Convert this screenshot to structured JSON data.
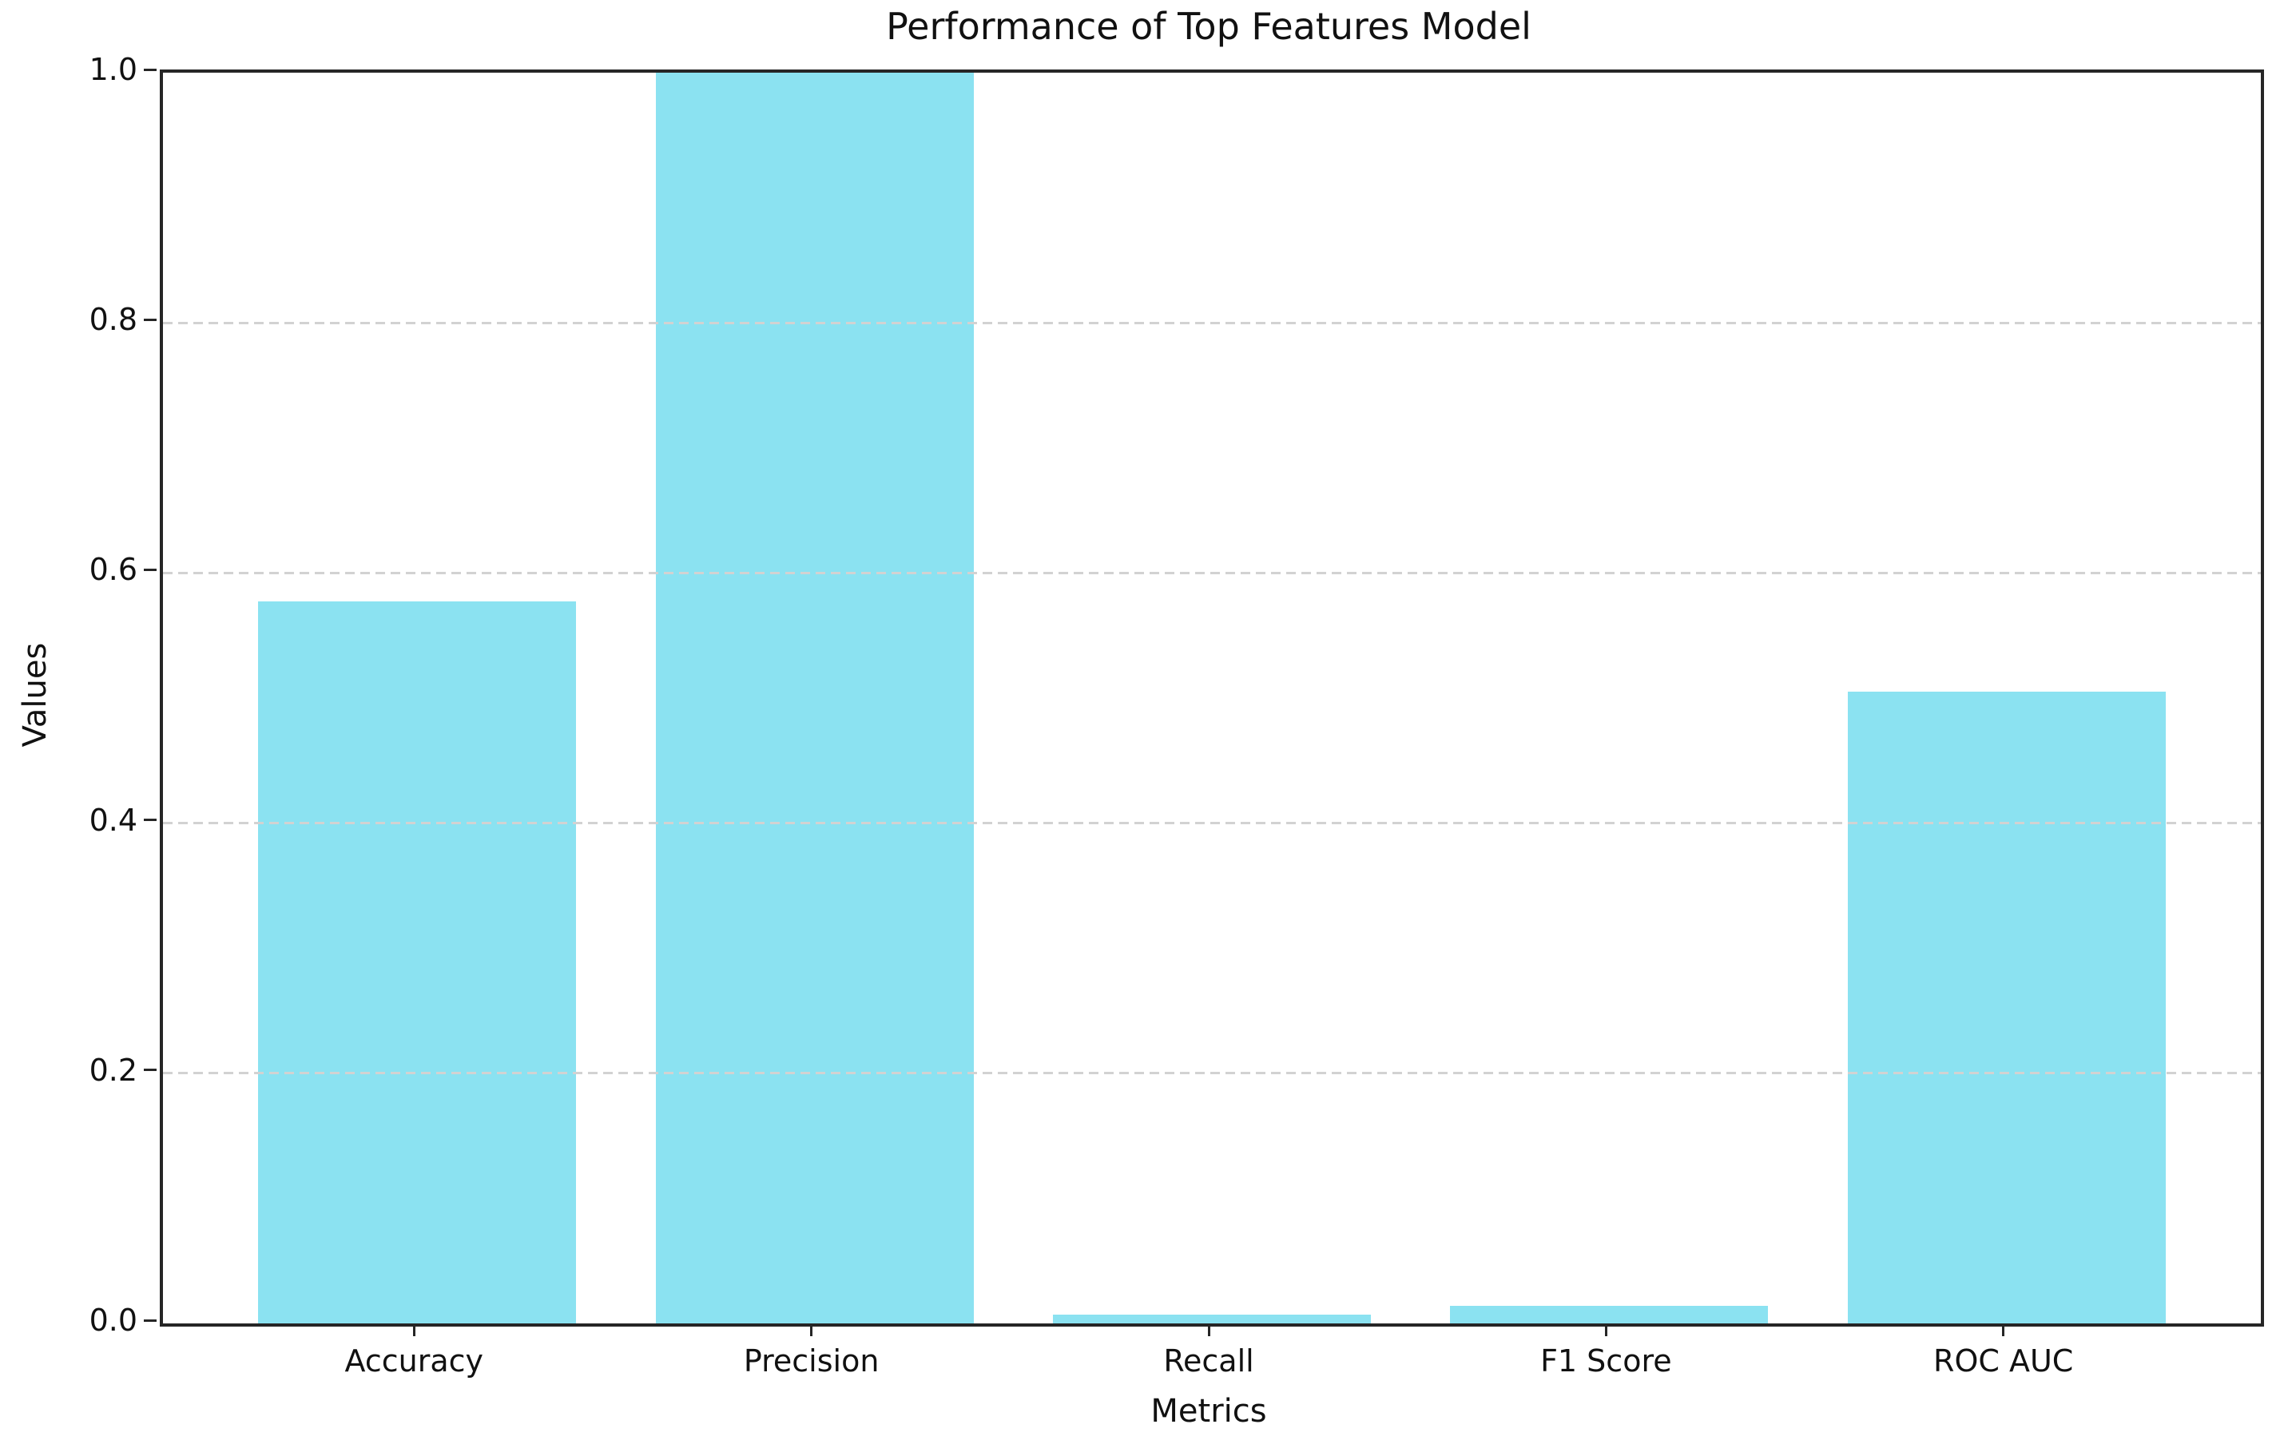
{
  "chart_data": {
    "type": "bar",
    "title": "Performance of Top Features Model",
    "xlabel": "Metrics",
    "ylabel": "Values",
    "categories": [
      "Accuracy",
      "Precision",
      "Recall",
      "F1 Score",
      "ROC AUC"
    ],
    "values": [
      0.577,
      1.0,
      0.007,
      0.014,
      0.505
    ],
    "ylim": [
      0.0,
      1.0
    ],
    "yticks": [
      0.0,
      0.2,
      0.4,
      0.6,
      0.8,
      1.0
    ],
    "ytick_labels": [
      "0.0",
      "0.2",
      "0.4",
      "0.6",
      "0.8",
      "1.0"
    ],
    "grid": "horizontal-dashed",
    "grid_ticks": [
      0.2,
      0.4,
      0.6,
      0.8
    ],
    "legend_position": "none",
    "bar_color": "#8be2f1",
    "grid_color": "#d2d2d2",
    "spine_color": "#262626",
    "bar_width_fraction": 0.8,
    "xlim_category_units": [
      -0.64,
      4.64
    ]
  }
}
